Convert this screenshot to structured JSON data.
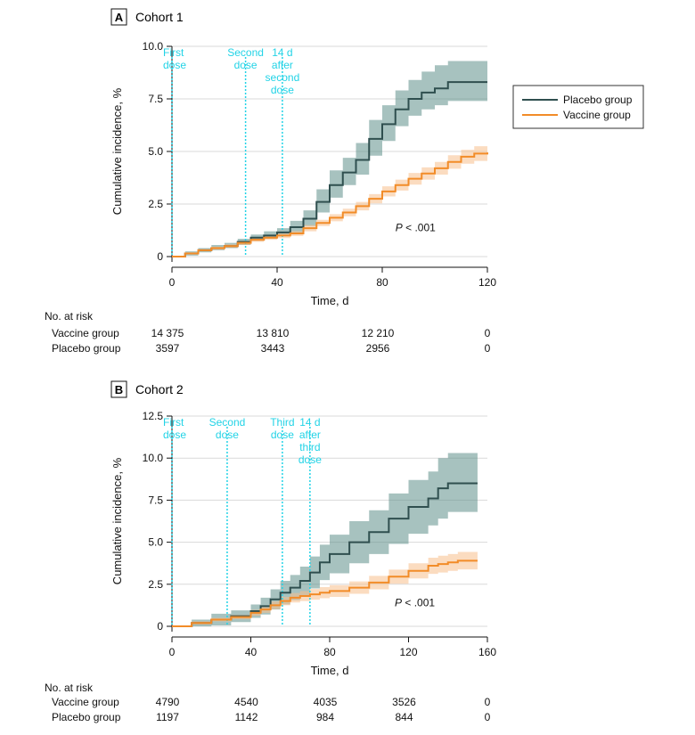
{
  "legend": {
    "items": [
      {
        "label": "Placebo group",
        "color": "#2f4f4f"
      },
      {
        "label": "Vaccine group",
        "color": "#f28c28"
      }
    ]
  },
  "risk_title": "No. at risk",
  "chart_data": [
    {
      "type": "line",
      "panel": "A",
      "title": "Cohort 1",
      "xlabel": "Time, d",
      "ylabel": "Cumulative incidence, %",
      "xlim": [
        0,
        120
      ],
      "ylim": [
        0,
        10
      ],
      "xticks": [
        0,
        40,
        80,
        120
      ],
      "xtick_labels": [
        "0",
        "40",
        "80",
        "120"
      ],
      "yticks": [
        0,
        2.5,
        5,
        7.5,
        10
      ],
      "ytick_labels": [
        "0",
        "2.5",
        "5.0",
        "7.5",
        "10.0"
      ],
      "p_value": {
        "prefix": "P",
        "text": " < .001",
        "x": 85,
        "y": 1.2
      },
      "annotations": [
        {
          "x": 0,
          "lines": [
            "First",
            "dose"
          ]
        },
        {
          "x": 28,
          "lines": [
            "Second",
            "dose"
          ]
        },
        {
          "x": 42,
          "lines": [
            "14 d",
            "after",
            "second",
            "dose"
          ]
        }
      ],
      "series": [
        {
          "name": "Placebo group",
          "color": "#2f4f4f",
          "band_color": "#5f8f8a",
          "x": [
            0,
            5,
            10,
            15,
            20,
            25,
            30,
            35,
            40,
            45,
            50,
            55,
            60,
            65,
            70,
            75,
            80,
            85,
            90,
            95,
            100,
            105,
            110,
            115,
            120
          ],
          "y": [
            0,
            0.15,
            0.3,
            0.4,
            0.5,
            0.7,
            0.9,
            1.0,
            1.15,
            1.4,
            1.8,
            2.6,
            3.4,
            4.0,
            4.6,
            5.6,
            6.3,
            7.0,
            7.5,
            7.8,
            8.0,
            8.3,
            8.3,
            8.3,
            8.3
          ],
          "lower": [
            0,
            0.05,
            0.2,
            0.3,
            0.4,
            0.55,
            0.75,
            0.85,
            1.0,
            1.15,
            1.45,
            2.1,
            2.8,
            3.4,
            3.9,
            4.8,
            5.5,
            6.2,
            6.7,
            7.0,
            7.2,
            7.4,
            7.4,
            7.4,
            7.4
          ],
          "upper": [
            0,
            0.25,
            0.4,
            0.55,
            0.65,
            0.85,
            1.05,
            1.2,
            1.35,
            1.7,
            2.2,
            3.2,
            4.1,
            4.7,
            5.4,
            6.5,
            7.2,
            7.9,
            8.4,
            8.8,
            9.1,
            9.3,
            9.3,
            9.3,
            9.3
          ]
        },
        {
          "name": "Vaccine group",
          "color": "#f28c28",
          "band_color": "#f7c08c",
          "x": [
            0,
            5,
            10,
            15,
            20,
            25,
            30,
            35,
            40,
            45,
            50,
            55,
            60,
            65,
            70,
            75,
            80,
            85,
            90,
            95,
            100,
            105,
            110,
            115,
            120
          ],
          "y": [
            0,
            0.15,
            0.3,
            0.4,
            0.5,
            0.65,
            0.8,
            0.9,
            1.0,
            1.1,
            1.35,
            1.6,
            1.85,
            2.1,
            2.4,
            2.75,
            3.1,
            3.4,
            3.7,
            3.95,
            4.2,
            4.5,
            4.75,
            4.9,
            4.95
          ],
          "lower": [
            0,
            0.1,
            0.25,
            0.33,
            0.42,
            0.55,
            0.7,
            0.8,
            0.88,
            0.98,
            1.2,
            1.45,
            1.68,
            1.92,
            2.2,
            2.53,
            2.86,
            3.14,
            3.42,
            3.66,
            3.9,
            4.18,
            4.42,
            4.55,
            4.6
          ],
          "upper": [
            0,
            0.2,
            0.35,
            0.47,
            0.58,
            0.75,
            0.9,
            1.0,
            1.12,
            1.22,
            1.5,
            1.75,
            2.02,
            2.28,
            2.6,
            2.97,
            3.34,
            3.66,
            3.98,
            4.24,
            4.5,
            4.82,
            5.08,
            5.25,
            5.35
          ]
        }
      ],
      "risk_table": {
        "times": [
          0,
          40,
          80,
          120
        ],
        "rows": [
          {
            "label": "Vaccine group",
            "values": [
              "14 375",
              "13 810",
              "12 210",
              "0"
            ]
          },
          {
            "label": "Placebo group",
            "values": [
              "3597",
              "3443",
              "2956",
              "0"
            ]
          }
        ]
      }
    },
    {
      "type": "line",
      "panel": "B",
      "title": "Cohort 2",
      "xlabel": "Time, d",
      "ylabel": "Cumulative incidence, %",
      "xlim": [
        0,
        160
      ],
      "ylim": [
        0,
        12.5
      ],
      "xticks": [
        0,
        40,
        80,
        120,
        160
      ],
      "xtick_labels": [
        "0",
        "40",
        "80",
        "120",
        "160"
      ],
      "yticks": [
        0,
        2.5,
        5,
        7.5,
        10,
        12.5
      ],
      "ytick_labels": [
        "0",
        "2.5",
        "5.0",
        "7.5",
        "10.0",
        "12.5"
      ],
      "p_value": {
        "prefix": "P",
        "text": " < .001",
        "x": 113,
        "y": 1.2
      },
      "annotations": [
        {
          "x": 0,
          "lines": [
            "First",
            "dose"
          ]
        },
        {
          "x": 28,
          "lines": [
            "Second",
            "dose"
          ]
        },
        {
          "x": 56,
          "lines": [
            "Third",
            "dose"
          ]
        },
        {
          "x": 70,
          "lines": [
            "14 d",
            "after",
            "third",
            "dose"
          ]
        }
      ],
      "series": [
        {
          "name": "Placebo group",
          "color": "#2f4f4f",
          "band_color": "#5f8f8a",
          "x": [
            0,
            10,
            20,
            30,
            40,
            45,
            50,
            55,
            60,
            65,
            70,
            75,
            80,
            90,
            100,
            110,
            120,
            130,
            135,
            140,
            145,
            150,
            155
          ],
          "y": [
            0,
            0.2,
            0.4,
            0.6,
            0.9,
            1.2,
            1.6,
            2.0,
            2.3,
            2.7,
            3.2,
            3.8,
            4.3,
            5.0,
            5.6,
            6.4,
            7.1,
            7.6,
            8.2,
            8.5,
            8.5,
            8.5,
            8.5
          ],
          "lower": [
            0,
            0,
            0.05,
            0.25,
            0.5,
            0.7,
            1.0,
            1.3,
            1.55,
            1.85,
            2.25,
            2.75,
            3.15,
            3.75,
            4.3,
            4.9,
            5.5,
            6.0,
            6.4,
            6.8,
            6.8,
            6.8,
            6.8
          ],
          "upper": [
            0,
            0.4,
            0.75,
            0.95,
            1.3,
            1.7,
            2.2,
            2.7,
            3.05,
            3.55,
            4.15,
            4.85,
            5.45,
            6.25,
            6.9,
            7.9,
            8.7,
            9.2,
            10.0,
            10.3,
            10.3,
            10.3,
            10.3
          ]
        },
        {
          "name": "Vaccine group",
          "color": "#f28c28",
          "band_color": "#f7c08c",
          "x": [
            0,
            10,
            20,
            30,
            40,
            45,
            50,
            55,
            60,
            65,
            70,
            75,
            80,
            90,
            100,
            110,
            120,
            130,
            135,
            140,
            145,
            150,
            155
          ],
          "y": [
            0,
            0.2,
            0.4,
            0.55,
            0.8,
            1.0,
            1.25,
            1.5,
            1.7,
            1.8,
            1.9,
            2.0,
            2.1,
            2.3,
            2.6,
            2.95,
            3.3,
            3.6,
            3.7,
            3.8,
            3.9,
            3.9,
            3.9
          ],
          "lower": [
            0,
            0.1,
            0.3,
            0.42,
            0.62,
            0.8,
            1.02,
            1.25,
            1.42,
            1.5,
            1.58,
            1.67,
            1.75,
            1.93,
            2.2,
            2.53,
            2.85,
            3.12,
            3.2,
            3.3,
            3.38,
            3.38,
            3.38
          ],
          "upper": [
            0,
            0.3,
            0.5,
            0.68,
            0.98,
            1.2,
            1.48,
            1.75,
            1.98,
            2.1,
            2.22,
            2.33,
            2.45,
            2.67,
            3.0,
            3.37,
            3.75,
            4.08,
            4.2,
            4.3,
            4.42,
            4.42,
            4.42
          ]
        }
      ],
      "risk_table": {
        "times": [
          0,
          40,
          80,
          120,
          160
        ],
        "rows": [
          {
            "label": "Vaccine group",
            "values": [
              "4790",
              "4540",
              "4035",
              "3526",
              "0"
            ]
          },
          {
            "label": "Placebo group",
            "values": [
              "1197",
              "1142",
              "984",
              "844",
              "0"
            ]
          }
        ]
      }
    }
  ]
}
